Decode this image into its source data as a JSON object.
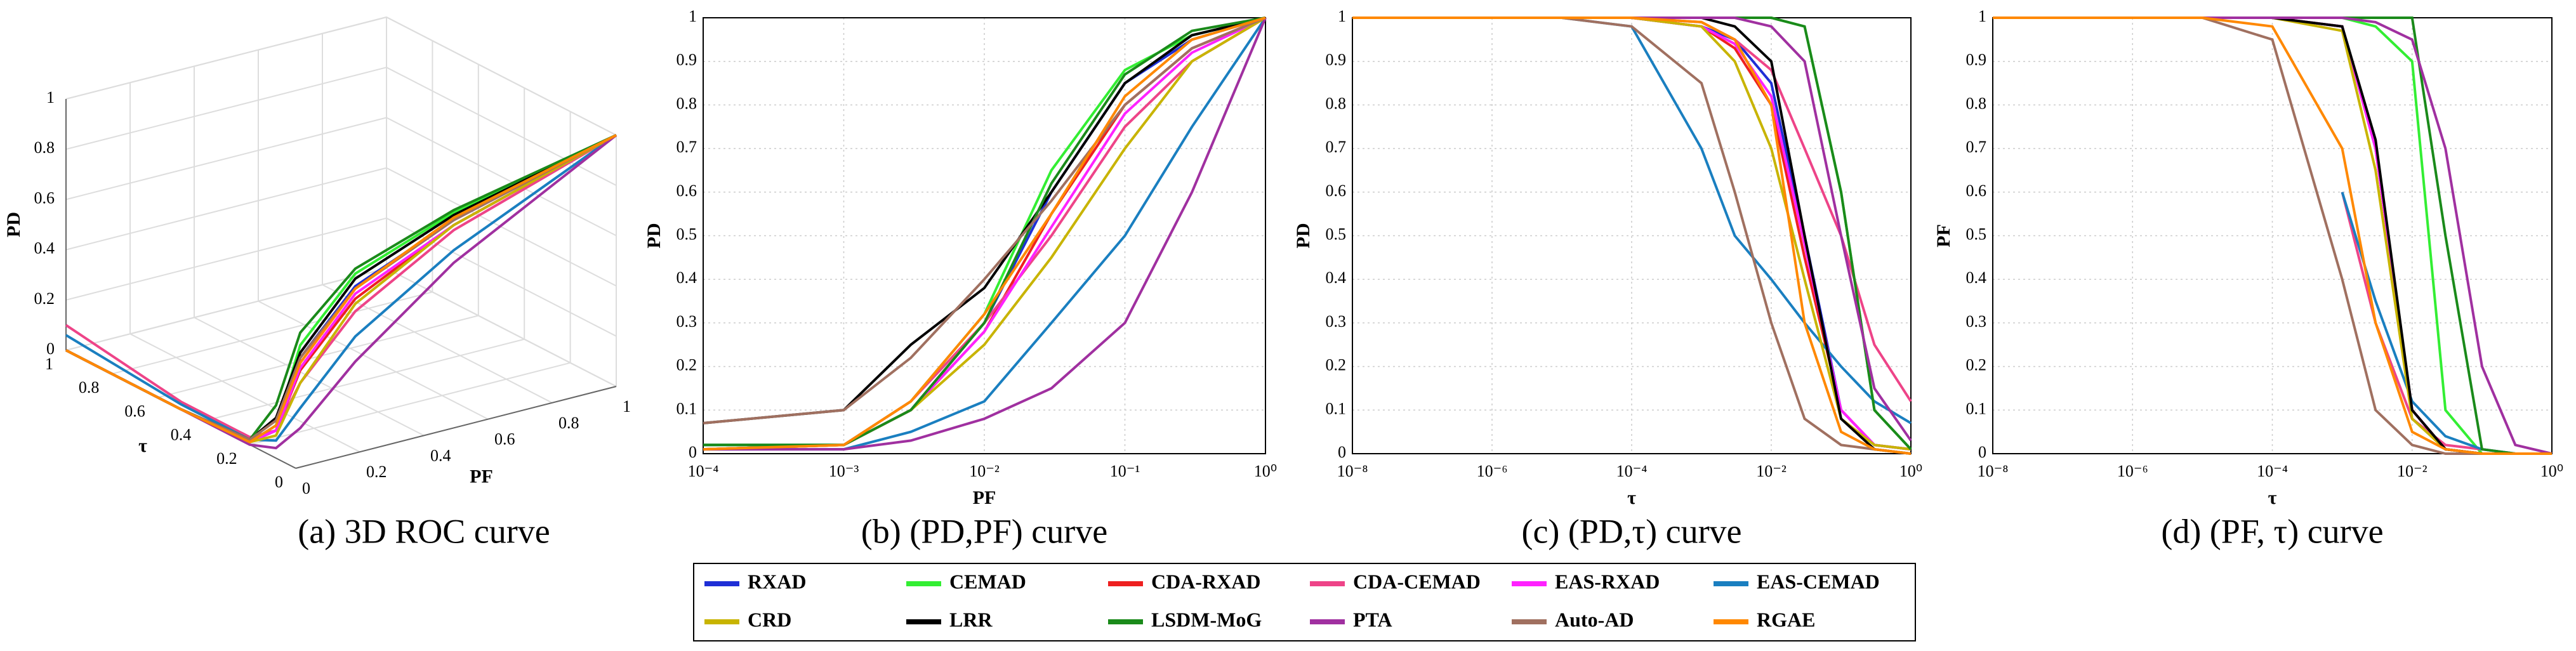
{
  "legend": {
    "series": [
      {
        "name": "RXAD",
        "color": "#1f2fd6"
      },
      {
        "name": "CEMAD",
        "color": "#33ee33"
      },
      {
        "name": "CDA-RXAD",
        "color": "#ee2020"
      },
      {
        "name": "CDA-CEMAD",
        "color": "#ee4488"
      },
      {
        "name": "EAS-RXAD",
        "color": "#ff22ff"
      },
      {
        "name": "EAS-CEMAD",
        "color": "#1a7fc0"
      },
      {
        "name": "CRD",
        "color": "#c8b400"
      },
      {
        "name": "LRR",
        "color": "#000000"
      },
      {
        "name": "LSDM-MoG",
        "color": "#1a8a1a"
      },
      {
        "name": "PTA",
        "color": "#a030a0"
      },
      {
        "name": "Auto-AD",
        "color": "#a07060"
      },
      {
        "name": "RGAE",
        "color": "#ff8800"
      }
    ]
  },
  "chart_data": [
    {
      "type": "line3d",
      "title": "(a) 3D ROC curve",
      "xlabel": "PF",
      "ylabel": "τ",
      "zlabel": "PD",
      "xlim": [
        0,
        1
      ],
      "ylim": [
        0,
        1
      ],
      "zlim": [
        0,
        1
      ],
      "xticks": [
        0,
        0.2,
        0.4,
        0.6,
        0.8,
        1
      ],
      "yticks": [
        0,
        0.2,
        0.4,
        0.6,
        0.8,
        1
      ],
      "zticks": [
        0,
        0.2,
        0.4,
        0.6,
        0.8,
        1
      ],
      "tau": [
        1,
        0.5,
        0.2,
        0.1,
        0.05,
        0.02,
        0.01,
        0
      ],
      "pf": [
        0,
        0,
        0,
        0.01,
        0.05,
        0.2,
        0.5,
        1
      ],
      "series": [
        {
          "pd": [
            0,
            0,
            0.01,
            0.1,
            0.4,
            0.65,
            0.82,
            1
          ]
        },
        {
          "pd": [
            0,
            0,
            0.01,
            0.12,
            0.45,
            0.7,
            0.85,
            1
          ]
        },
        {
          "pd": [
            0,
            0,
            0.01,
            0.1,
            0.35,
            0.6,
            0.8,
            1
          ]
        },
        {
          "pd": [
            0.1,
            0.03,
            0.03,
            0.1,
            0.3,
            0.55,
            0.78,
            1
          ]
        },
        {
          "pd": [
            0,
            0,
            0.01,
            0.1,
            0.36,
            0.62,
            0.8,
            1
          ]
        },
        {
          "pd": [
            0.06,
            0.02,
            0.02,
            0.06,
            0.2,
            0.45,
            0.7,
            1
          ]
        },
        {
          "pd": [
            0,
            0,
            0.01,
            0.08,
            0.3,
            0.58,
            0.8,
            1
          ]
        },
        {
          "pd": [
            0,
            0,
            0.02,
            0.15,
            0.42,
            0.68,
            0.84,
            1
          ]
        },
        {
          "pd": [
            0,
            0,
            0.02,
            0.2,
            0.5,
            0.72,
            0.86,
            1
          ]
        },
        {
          "pd": [
            0,
            0,
            0,
            0.03,
            0.12,
            0.35,
            0.65,
            1
          ]
        },
        {
          "pd": [
            0,
            0,
            0.02,
            0.14,
            0.4,
            0.64,
            0.82,
            1
          ]
        },
        {
          "pd": [
            0,
            0,
            0.01,
            0.12,
            0.38,
            0.64,
            0.83,
            1
          ]
        }
      ]
    },
    {
      "type": "line",
      "title": "(b) (PD,PF) curve",
      "xlabel": "PF",
      "ylabel": "PD",
      "xscale": "log",
      "xlim": [
        0.0001,
        1
      ],
      "ylim": [
        0,
        1
      ],
      "xticks": [
        {
          "value": 0.0001,
          "label": "10⁻⁴"
        },
        {
          "value": 0.001,
          "label": "10⁻³"
        },
        {
          "value": 0.01,
          "label": "10⁻²"
        },
        {
          "value": 0.1,
          "label": "10⁻¹"
        },
        {
          "value": 1,
          "label": "10⁰"
        }
      ],
      "yticks": [
        0,
        0.1,
        0.2,
        0.3,
        0.4,
        0.5,
        0.6,
        0.7,
        0.8,
        0.9,
        1
      ],
      "x": [
        0.0001,
        0.001,
        0.003,
        0.01,
        0.03,
        0.1,
        0.3,
        1
      ],
      "series": [
        {
          "values": [
            0.02,
            0.02,
            0.1,
            0.3,
            0.6,
            0.85,
            0.95,
            1
          ]
        },
        {
          "values": [
            0.02,
            0.02,
            0.12,
            0.32,
            0.65,
            0.88,
            0.96,
            1
          ]
        },
        {
          "values": [
            0.01,
            0.02,
            0.1,
            0.28,
            0.55,
            0.8,
            0.93,
            1
          ]
        },
        {
          "values": [
            0.01,
            0.02,
            0.12,
            0.3,
            0.5,
            0.75,
            0.9,
            1
          ]
        },
        {
          "values": [
            0.01,
            0.02,
            0.1,
            0.28,
            0.52,
            0.78,
            0.92,
            1
          ]
        },
        {
          "values": [
            0.01,
            0.01,
            0.05,
            0.12,
            0.3,
            0.5,
            0.75,
            1
          ]
        },
        {
          "values": [
            0.01,
            0.02,
            0.1,
            0.25,
            0.45,
            0.7,
            0.9,
            1
          ]
        },
        {
          "values": [
            0.07,
            0.1,
            0.25,
            0.38,
            0.6,
            0.85,
            0.96,
            1
          ]
        },
        {
          "values": [
            0.02,
            0.02,
            0.1,
            0.3,
            0.62,
            0.87,
            0.97,
            1
          ]
        },
        {
          "values": [
            0.01,
            0.01,
            0.03,
            0.08,
            0.15,
            0.3,
            0.6,
            1
          ]
        },
        {
          "values": [
            0.07,
            0.1,
            0.22,
            0.4,
            0.58,
            0.8,
            0.93,
            1
          ]
        },
        {
          "values": [
            0.01,
            0.02,
            0.12,
            0.32,
            0.55,
            0.82,
            0.95,
            1
          ]
        }
      ]
    },
    {
      "type": "line",
      "title": "(c) (PD,τ) curve",
      "xlabel": "τ",
      "ylabel": "PD",
      "xscale": "log",
      "xlim": [
        1e-08,
        1
      ],
      "ylim": [
        0,
        1
      ],
      "xticks": [
        {
          "value": 1e-08,
          "label": "10⁻⁸"
        },
        {
          "value": 1e-06,
          "label": "10⁻⁶"
        },
        {
          "value": 0.0001,
          "label": "10⁻⁴"
        },
        {
          "value": 0.01,
          "label": "10⁻²"
        },
        {
          "value": 1,
          "label": "10⁰"
        }
      ],
      "yticks": [
        0,
        0.1,
        0.2,
        0.3,
        0.4,
        0.5,
        0.6,
        0.7,
        0.8,
        0.9,
        1
      ],
      "x": [
        1e-08,
        1e-05,
        0.0001,
        0.001,
        0.003,
        0.01,
        0.03,
        0.1,
        0.3,
        1
      ],
      "series": [
        {
          "values": [
            1,
            1,
            1,
            0.98,
            0.95,
            0.85,
            0.5,
            0.1,
            0.02,
            0.01
          ]
        },
        {
          "values": [
            1,
            1,
            1,
            1,
            1,
            1,
            0.98,
            0.6,
            0.1,
            0.01
          ]
        },
        {
          "values": [
            1,
            1,
            1,
            0.98,
            0.93,
            0.8,
            0.45,
            0.1,
            0.02,
            0.01
          ]
        },
        {
          "values": [
            1,
            1,
            1,
            0.99,
            0.95,
            0.88,
            0.7,
            0.5,
            0.25,
            0.12
          ]
        },
        {
          "values": [
            1,
            1,
            1,
            0.98,
            0.94,
            0.82,
            0.48,
            0.1,
            0.02,
            0.01
          ]
        },
        {
          "values": [
            1,
            1,
            0.98,
            0.7,
            0.5,
            0.4,
            0.3,
            0.2,
            0.12,
            0.07
          ]
        },
        {
          "values": [
            1,
            1,
            1,
            0.98,
            0.9,
            0.7,
            0.4,
            0.08,
            0.02,
            0.01
          ]
        },
        {
          "values": [
            1,
            1,
            1,
            1,
            0.98,
            0.9,
            0.5,
            0.08,
            0.01,
            0
          ]
        },
        {
          "values": [
            1,
            1,
            1,
            1,
            1,
            1,
            0.98,
            0.6,
            0.1,
            0.01
          ]
        },
        {
          "values": [
            1,
            1,
            1,
            1,
            1,
            0.98,
            0.9,
            0.5,
            0.15,
            0.03
          ]
        },
        {
          "values": [
            1,
            1,
            0.98,
            0.85,
            0.6,
            0.3,
            0.08,
            0.02,
            0.01,
            0
          ]
        },
        {
          "values": [
            1,
            1,
            1,
            0.99,
            0.95,
            0.8,
            0.3,
            0.05,
            0.01,
            0
          ]
        }
      ]
    },
    {
      "type": "line",
      "title": "(d) (PF, τ) curve",
      "xlabel": "τ",
      "ylabel": "PF",
      "xscale": "log",
      "xlim": [
        1e-08,
        1
      ],
      "ylim": [
        0,
        1
      ],
      "xticks": [
        {
          "value": 1e-08,
          "label": "10⁻⁸"
        },
        {
          "value": 1e-06,
          "label": "10⁻⁶"
        },
        {
          "value": 0.0001,
          "label": "10⁻⁴"
        },
        {
          "value": 0.01,
          "label": "10⁻²"
        },
        {
          "value": 1,
          "label": "10⁰"
        }
      ],
      "yticks": [
        0,
        0.1,
        0.2,
        0.3,
        0.4,
        0.5,
        0.6,
        0.7,
        0.8,
        0.9,
        1
      ],
      "x": [
        1e-08,
        1e-05,
        0.0001,
        0.001,
        0.003,
        0.01,
        0.03,
        0.1,
        0.3,
        1
      ],
      "series": [
        {
          "values": [
            1,
            1,
            1,
            0.98,
            0.7,
            0.1,
            0.01,
            0,
            0,
            0
          ]
        },
        {
          "values": [
            1,
            1,
            1,
            1,
            0.98,
            0.9,
            0.1,
            0,
            0,
            0
          ]
        },
        {
          "values": [
            1,
            1,
            1,
            0.98,
            0.7,
            0.1,
            0.01,
            0,
            0,
            0
          ]
        },
        {
          "values": [
            null,
            null,
            null,
            0.6,
            0.3,
            0.08,
            0.02,
            0.01,
            0,
            0
          ]
        },
        {
          "values": [
            1,
            1,
            1,
            0.98,
            0.7,
            0.1,
            0.01,
            0,
            0,
            0
          ]
        },
        {
          "values": [
            null,
            null,
            null,
            0.6,
            0.35,
            0.12,
            0.04,
            0.01,
            0,
            0
          ]
        },
        {
          "values": [
            1,
            1,
            1,
            0.97,
            0.65,
            0.08,
            0.01,
            0,
            0,
            0
          ]
        },
        {
          "values": [
            1,
            1,
            1,
            0.98,
            0.72,
            0.1,
            0.01,
            0,
            0,
            0
          ]
        },
        {
          "values": [
            1,
            1,
            1,
            1,
            1,
            1,
            0.5,
            0.01,
            0,
            0
          ]
        },
        {
          "values": [
            1,
            1,
            1,
            1,
            0.99,
            0.95,
            0.7,
            0.2,
            0.02,
            0
          ]
        },
        {
          "values": [
            1,
            1,
            0.95,
            0.4,
            0.1,
            0.02,
            0,
            0,
            0,
            0
          ]
        },
        {
          "values": [
            1,
            1,
            0.98,
            0.7,
            0.3,
            0.05,
            0.01,
            0,
            0,
            0
          ]
        }
      ]
    }
  ]
}
